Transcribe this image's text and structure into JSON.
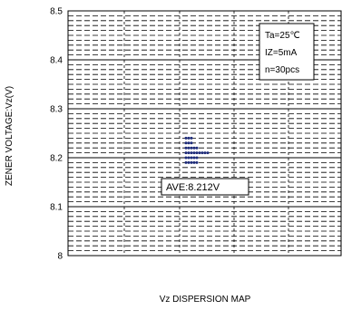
{
  "chart_data": {
    "type": "scatter",
    "ylabel": "ZENER VOLTAGE:Vz(V)",
    "xlabel": "Vz DISPERSION MAP",
    "ylim": [
      8.0,
      8.5
    ],
    "yticks": [
      "8",
      "8.1",
      "8.2",
      "8.3",
      "8.4",
      "8.5"
    ],
    "grid": true,
    "conditions": [
      "Ta=25℃",
      "IZ=5mA",
      "n=30pcs"
    ],
    "average_label": "AVE:8.212V",
    "points": [
      {
        "x": 0,
        "y": 8.24
      },
      {
        "x": 1,
        "y": 8.24
      },
      {
        "x": 2,
        "y": 8.24
      },
      {
        "x": 0,
        "y": 8.23
      },
      {
        "x": 1,
        "y": 8.23
      },
      {
        "x": 2,
        "y": 8.23
      },
      {
        "x": 0,
        "y": 8.22
      },
      {
        "x": 1,
        "y": 8.22
      },
      {
        "x": 2,
        "y": 8.22
      },
      {
        "x": 3,
        "y": 8.22
      },
      {
        "x": 4,
        "y": 8.22
      },
      {
        "x": 0,
        "y": 8.21
      },
      {
        "x": 1,
        "y": 8.21
      },
      {
        "x": 2,
        "y": 8.21
      },
      {
        "x": 3,
        "y": 8.21
      },
      {
        "x": 4,
        "y": 8.21
      },
      {
        "x": 5,
        "y": 8.21
      },
      {
        "x": 6,
        "y": 8.21
      },
      {
        "x": 7,
        "y": 8.21
      },
      {
        "x": 8,
        "y": 8.21
      },
      {
        "x": 0,
        "y": 8.2
      },
      {
        "x": 1,
        "y": 8.2
      },
      {
        "x": 2,
        "y": 8.2
      },
      {
        "x": 3,
        "y": 8.2
      },
      {
        "x": 4,
        "y": 8.2
      },
      {
        "x": 0,
        "y": 8.19
      },
      {
        "x": 1,
        "y": 8.19
      },
      {
        "x": 2,
        "y": 8.19
      },
      {
        "x": 3,
        "y": 8.19
      },
      {
        "x": 4,
        "y": 8.19
      }
    ],
    "colors": {
      "points": "#1f2d7a",
      "grid": "#000000"
    }
  }
}
